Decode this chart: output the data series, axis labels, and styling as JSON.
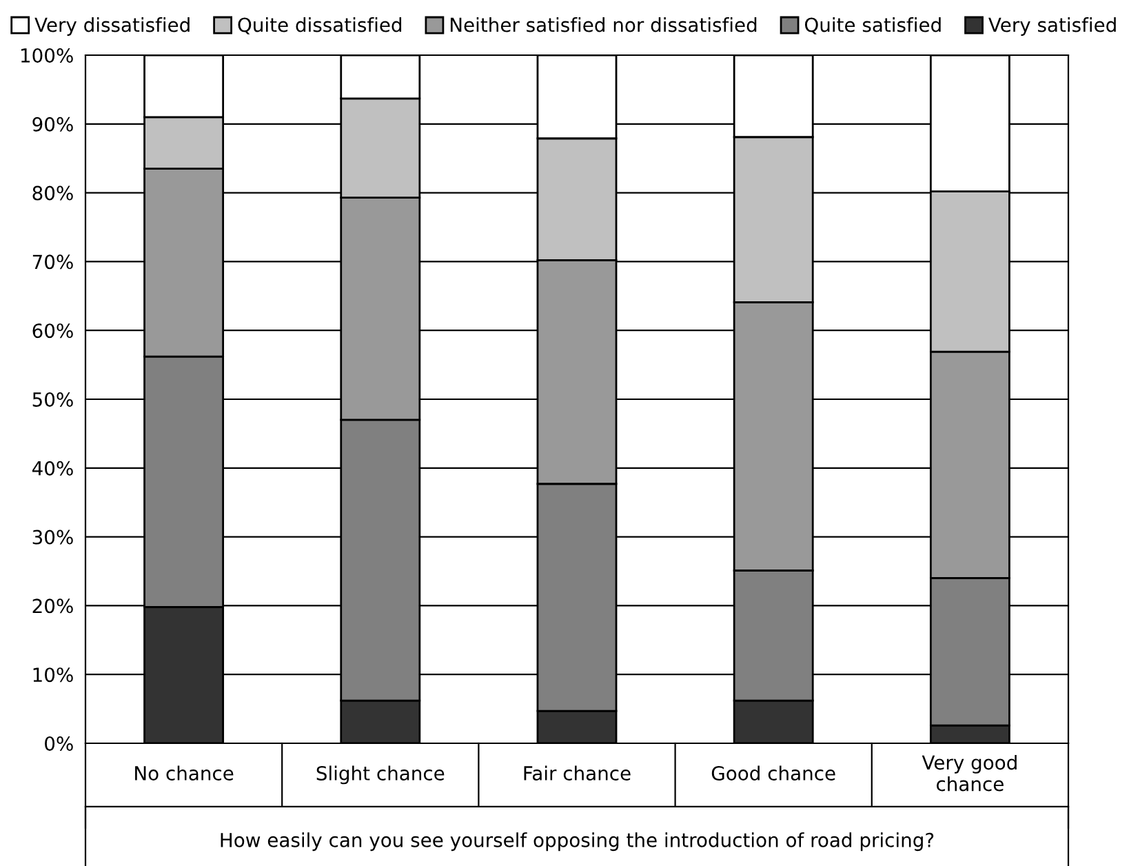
{
  "chart_data": {
    "type": "bar",
    "stacked": true,
    "xlabel": "How easily can you see yourself opposing the introduction of road pricing?",
    "categories": [
      "No chance",
      "Slight chance",
      "Fair chance",
      "Good chance",
      "Very good\nchance"
    ],
    "series": [
      {
        "name": "Very satisfied",
        "color": "#333333",
        "values": [
          19.8,
          6.2,
          4.7,
          6.2,
          2.6
        ]
      },
      {
        "name": "Quite satisfied",
        "color": "#808080",
        "values": [
          36.4,
          40.8,
          33.0,
          18.9,
          21.4
        ]
      },
      {
        "name": "Neither satisfied nor dissatisfied",
        "color": "#999999",
        "values": [
          27.3,
          32.3,
          32.5,
          39.0,
          32.9
        ]
      },
      {
        "name": "Quite dissatisfied",
        "color": "#c0c0c0",
        "values": [
          7.5,
          14.4,
          17.7,
          24.0,
          23.3
        ]
      },
      {
        "name": "Very dissatisfied",
        "color": "#ffffff",
        "values": [
          9.0,
          6.3,
          12.1,
          11.9,
          19.8
        ]
      }
    ],
    "ylim": [
      0,
      100
    ],
    "yticks": [
      {
        "value": 0,
        "label": "0%"
      },
      {
        "value": 10,
        "label": "10%"
      },
      {
        "value": 20,
        "label": "20%"
      },
      {
        "value": 30,
        "label": "30%"
      },
      {
        "value": 40,
        "label": "40%"
      },
      {
        "value": 50,
        "label": "50%"
      },
      {
        "value": 60,
        "label": "60%"
      },
      {
        "value": 70,
        "label": "70%"
      },
      {
        "value": 80,
        "label": "80%"
      },
      {
        "value": 90,
        "label": "90%"
      },
      {
        "value": 100,
        "label": "100%"
      }
    ],
    "grid": "y",
    "legend": "top"
  }
}
